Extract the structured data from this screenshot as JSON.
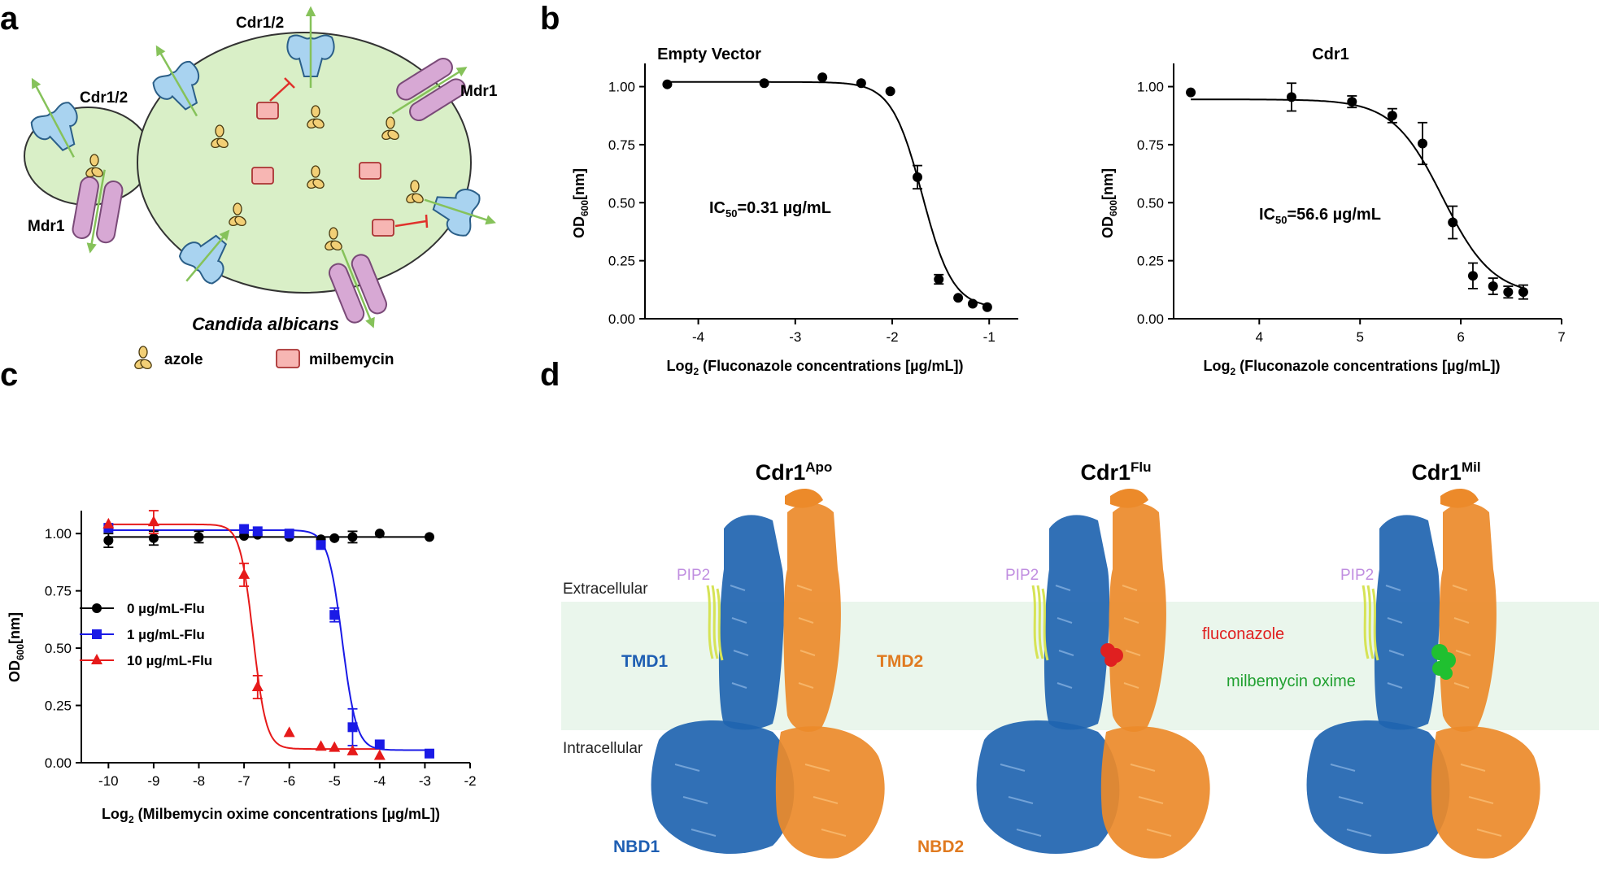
{
  "panels": {
    "a": "a",
    "b": "b",
    "c": "c",
    "d": "d"
  },
  "schematic": {
    "label_cdr_left": "Cdr1/2",
    "label_cdr_top": "Cdr1/2",
    "label_mdr_right": "Mdr1",
    "label_mdr_left": "Mdr1",
    "organism": "Candida albicans",
    "legend_azole": "azole",
    "legend_milbemycin": "milbemycin",
    "colors": {
      "cell": "#d9efc7",
      "cdr": "#a9d3f0",
      "mdr": "#d7a8d4",
      "milbemycin": "#f7b6b3",
      "azole": "#f2cf76",
      "arrow": "#86c25a",
      "inhibit": "#e0322c"
    }
  },
  "chart_data": [
    {
      "id": "b-left",
      "type": "scatter",
      "title": "Empty Vector",
      "xlabel_main": "Log",
      "xlabel_sub": "2",
      "xlabel_rest": " (Fluconazole concentrations [µg/mL])",
      "ylabel_main": "OD",
      "ylabel_sub": "600",
      "ylabel_rest": "[nm]",
      "xlim": [
        -4.55,
        -0.7
      ],
      "ylim": [
        0,
        1.1
      ],
      "xticks": [
        -4,
        -3,
        -2,
        -1
      ],
      "yticks": [
        0.0,
        0.25,
        0.5,
        0.75,
        1.0
      ],
      "ytick_labels": [
        "0.00",
        "0.25",
        "0.50",
        "0.75",
        "1.00"
      ],
      "annotation_main": "IC",
      "annotation_sub": "50",
      "annotation_rest": "=0.31 µg/mL",
      "fit": {
        "top": 1.02,
        "bottom": 0.045,
        "logIC50": -1.69,
        "hill": 5.5
      },
      "series": [
        {
          "x": [
            -4.32,
            -3.32,
            -2.72,
            -2.32,
            -2.02,
            -1.74,
            -1.52,
            -1.32,
            -1.17,
            -1.02
          ],
          "y": [
            1.01,
            1.015,
            1.04,
            1.015,
            0.98,
            0.61,
            0.17,
            0.09,
            0.065,
            0.05
          ],
          "err": [
            0.0,
            0.0,
            0.0,
            0.0,
            0.0,
            0.05,
            0.02,
            0.0,
            0.0,
            0.0
          ]
        }
      ]
    },
    {
      "id": "b-right",
      "type": "scatter",
      "title": "Cdr1",
      "xlabel_main": "Log",
      "xlabel_sub": "2",
      "xlabel_rest": " (Fluconazole concentrations [µg/mL])",
      "ylabel_main": "OD",
      "ylabel_sub": "600",
      "ylabel_rest": "[nm]",
      "xlim": [
        3.15,
        7.0
      ],
      "ylim": [
        0,
        1.1
      ],
      "xticks": [
        4,
        5,
        6,
        7
      ],
      "yticks": [
        0.0,
        0.25,
        0.5,
        0.75,
        1.0
      ],
      "ytick_labels": [
        "0.00",
        "0.25",
        "0.50",
        "0.75",
        "1.00"
      ],
      "annotation_main": "IC",
      "annotation_sub": "50",
      "annotation_rest": "=56.6 µg/mL",
      "fit": {
        "top": 0.945,
        "bottom": 0.1,
        "logIC50": 5.82,
        "hill": 3.5
      },
      "series": [
        {
          "x": [
            3.32,
            4.32,
            4.92,
            5.32,
            5.62,
            5.92,
            6.12,
            6.32,
            6.47,
            6.62
          ],
          "y": [
            0.975,
            0.955,
            0.935,
            0.875,
            0.755,
            0.415,
            0.185,
            0.14,
            0.115,
            0.115
          ],
          "err": [
            0.0,
            0.06,
            0.025,
            0.03,
            0.09,
            0.07,
            0.055,
            0.035,
            0.025,
            0.03
          ]
        }
      ]
    },
    {
      "id": "c",
      "type": "scatter",
      "xlabel_main": "Log",
      "xlabel_sub": "2",
      "xlabel_rest": " (Milbemycin oxime concentrations [µg/mL])",
      "ylabel_main": "OD",
      "ylabel_sub": "600",
      "ylabel_rest": "[nm]",
      "xlim": [
        -10.6,
        -2.0
      ],
      "ylim": [
        0,
        1.1
      ],
      "xticks": [
        -10,
        -9,
        -8,
        -7,
        -6,
        -5,
        -4,
        -3,
        -2
      ],
      "yticks": [
        0.0,
        0.25,
        0.5,
        0.75,
        1.0
      ],
      "ytick_labels": [
        "0.00",
        "0.25",
        "0.50",
        "0.75",
        "1.00"
      ],
      "series": [
        {
          "name": "0 µg/mL-Flu",
          "color": "#000000",
          "marker": "circle",
          "fit": {
            "top": 0.985,
            "bottom": 0.985,
            "logIC50": -6.0,
            "hill": 1.0
          },
          "x": [
            -10.0,
            -9.0,
            -8.0,
            -7.0,
            -6.7,
            -6.0,
            -5.3,
            -5.0,
            -4.6,
            -4.0,
            -2.9
          ],
          "y": [
            0.97,
            0.98,
            0.985,
            0.99,
            0.995,
            0.985,
            0.975,
            0.98,
            0.985,
            1.0,
            0.985
          ],
          "err": [
            0.03,
            0.03,
            0.025,
            0.0,
            0.0,
            0.0,
            0.0,
            0.0,
            0.025,
            0.0,
            0.0
          ]
        },
        {
          "name": "1 µg/mL-Flu",
          "color": "#1a1ae6",
          "marker": "square",
          "fit": {
            "top": 1.015,
            "bottom": 0.055,
            "logIC50": -4.83,
            "hill": 5.5
          },
          "x": [
            -10.0,
            -7.0,
            -6.7,
            -6.0,
            -5.3,
            -5.0,
            -4.6,
            -4.0,
            -2.9
          ],
          "y": [
            1.025,
            1.02,
            1.01,
            1.0,
            0.95,
            0.645,
            0.155,
            0.08,
            0.04
          ],
          "err": [
            0.0,
            0.0,
            0.0,
            0.0,
            0.0,
            0.03,
            0.08,
            0.0,
            0.0
          ]
        },
        {
          "name": "10 µg/mL-Flu",
          "color": "#e61a1a",
          "marker": "triangle",
          "fit": {
            "top": 1.04,
            "bottom": 0.06,
            "logIC50": -6.8,
            "hill": 6.0
          },
          "x": [
            -10.0,
            -9.0,
            -7.0,
            -6.7,
            -6.0,
            -5.3,
            -5.0,
            -4.6,
            -4.0
          ],
          "y": [
            1.04,
            1.05,
            0.82,
            0.33,
            0.13,
            0.07,
            0.065,
            0.05,
            0.03
          ],
          "err": [
            0.0,
            0.05,
            0.05,
            0.05,
            0.0,
            0.0,
            0.0,
            0.0,
            0.0
          ]
        }
      ]
    }
  ],
  "structures": {
    "titles": [
      {
        "main": "Cdr1",
        "sup": "Apo"
      },
      {
        "main": "Cdr1",
        "sup": "Flu"
      },
      {
        "main": "Cdr1",
        "sup": "Mil"
      }
    ],
    "extracellular": "Extracellular",
    "intracellular": "Intracellular",
    "pip2": "PIP2",
    "tmd1": "TMD1",
    "tmd2": "TMD2",
    "nbd1": "NBD1",
    "nbd2": "NBD2",
    "fluconazole": "fluconazole",
    "milbemycin_oxime": "milbemycin oxime",
    "colors": {
      "half1": "#1f64b0",
      "half2": "#ec8a2a",
      "membrane": "#eaf6ec",
      "pip2": "#d6e356",
      "pip2_label": "#c08ee0",
      "fluconazole": "#e02020",
      "milbemycin": "#20c030",
      "tmd1": "#1f5fb3",
      "tmd2": "#e07a20"
    }
  }
}
